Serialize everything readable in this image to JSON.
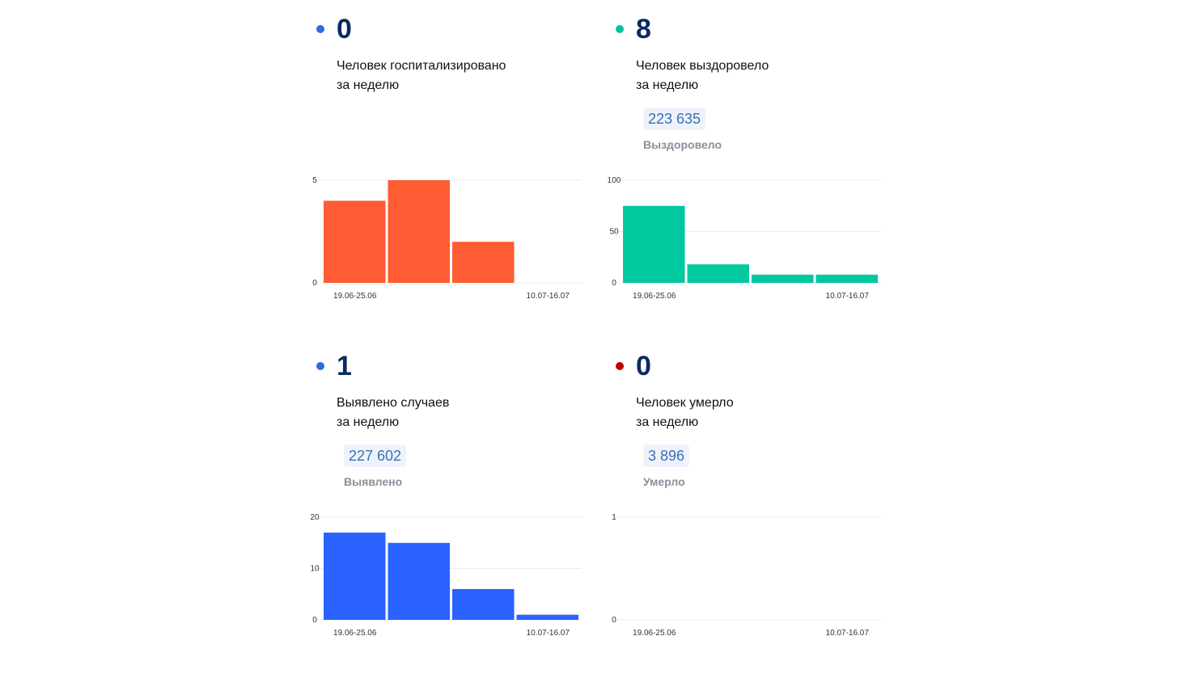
{
  "cards": [
    {
      "dot_color": "#2f6be0",
      "value": "0",
      "desc": "Человек госпитализировано\nза неделю",
      "total": "",
      "total_label": "",
      "bar_color": "#ff5c33",
      "chart_data": {
        "type": "bar",
        "categories": [
          "19.06-25.06",
          "",
          "",
          "10.07-16.07"
        ],
        "values": [
          4,
          5,
          2,
          0
        ],
        "ylim": [
          0,
          5
        ],
        "yticks": [
          "0",
          "5"
        ],
        "xtick_labels": [
          "19.06-25.06",
          "10.07-16.07"
        ]
      }
    },
    {
      "dot_color": "#00c2a0",
      "value": "8",
      "desc": "Человек выздоровело\nза неделю",
      "total": "223 635",
      "total_label": "Выздоровело",
      "bar_color": "#00c9a0",
      "chart_data": {
        "type": "bar",
        "categories": [
          "19.06-25.06",
          "",
          "",
          "10.07-16.07"
        ],
        "values": [
          75,
          18,
          8,
          8
        ],
        "ylim": [
          0,
          100
        ],
        "yticks": [
          "0",
          "50",
          "100"
        ],
        "xtick_labels": [
          "19.06-25.06",
          "10.07-16.07"
        ]
      }
    },
    {
      "dot_color": "#2f6be0",
      "value": "1",
      "desc": "Выявлено случаев\nза неделю",
      "total": "227 602",
      "total_label": "Выявлено",
      "bar_color": "#2962ff",
      "chart_data": {
        "type": "bar",
        "categories": [
          "19.06-25.06",
          "",
          "",
          "10.07-16.07"
        ],
        "values": [
          17,
          15,
          6,
          1
        ],
        "ylim": [
          0,
          20
        ],
        "yticks": [
          "0",
          "10",
          "20"
        ],
        "xtick_labels": [
          "19.06-25.06",
          "10.07-16.07"
        ]
      }
    },
    {
      "dot_color": "#c00000",
      "value": "0",
      "desc": "Человек умерло\nза неделю",
      "total": "3 896",
      "total_label": "Умерло",
      "bar_color": "#c00000",
      "chart_data": {
        "type": "bar",
        "categories": [
          "19.06-25.06",
          "",
          "",
          "10.07-16.07"
        ],
        "values": [
          0,
          0,
          0,
          0
        ],
        "ylim": [
          0,
          1
        ],
        "yticks": [
          "0",
          "1"
        ],
        "xtick_labels": [
          "19.06-25.06",
          "10.07-16.07"
        ]
      }
    }
  ]
}
